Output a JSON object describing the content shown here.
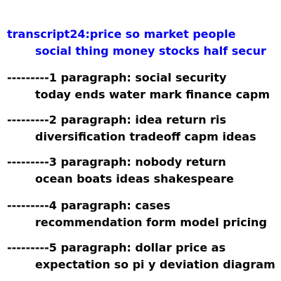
{
  "colors": {
    "title": "#0000ee",
    "body": "#000000"
  },
  "title": {
    "line1": "transcript24:price so market people",
    "line2": "social thing money stocks half secur"
  },
  "paragraphs": [
    {
      "line1": "---------1 paragraph: social security",
      "line2": "today ends water mark finance capm"
    },
    {
      "line1": "---------2 paragraph: idea return ris",
      "line2": "diversification tradeoff capm ideas"
    },
    {
      "line1": "---------3 paragraph: nobody return",
      "line2": "ocean boats ideas shakespeare"
    },
    {
      "line1": "---------4 paragraph: cases",
      "line2": "recommendation form model pricing"
    },
    {
      "line1": "---------5 paragraph: dollar price as",
      "line2": "expectation so pi y deviation diagram"
    }
  ]
}
